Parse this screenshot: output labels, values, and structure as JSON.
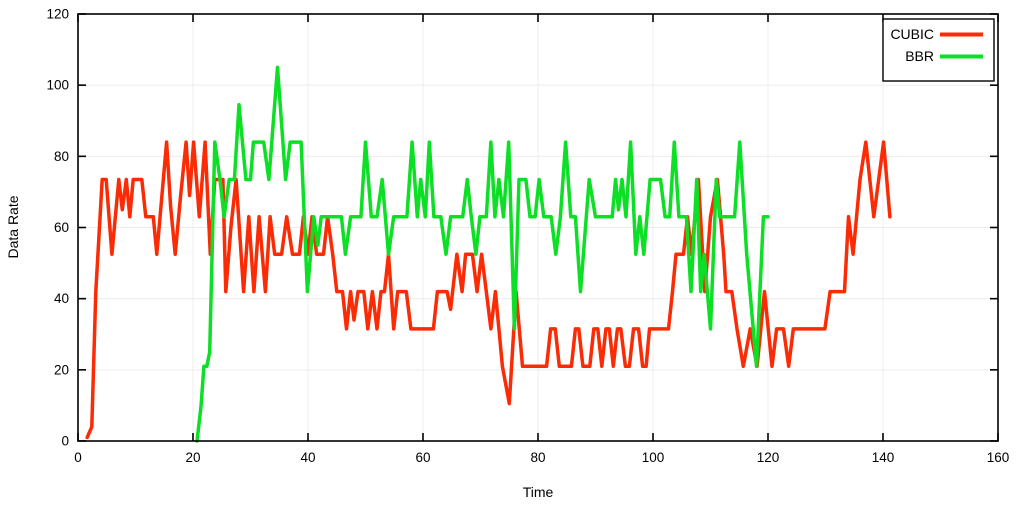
{
  "chart_data": {
    "type": "line",
    "title": "",
    "xlabel": "Time",
    "ylabel": "Data Rate",
    "xlim": [
      0,
      160
    ],
    "ylim": [
      0,
      120
    ],
    "xticks": [
      0,
      20,
      40,
      60,
      80,
      100,
      120,
      140,
      160
    ],
    "yticks": [
      0,
      20,
      40,
      60,
      80,
      100,
      120
    ],
    "grid": true,
    "legend_position": "top-right-inside",
    "colors": {
      "grid": "#ececec",
      "axis": "#000000",
      "background": "#ffffff"
    },
    "series": [
      {
        "name": "CUBIC",
        "color": "#fb2b06",
        "width": 3.5,
        "points": [
          [
            1.6,
            1
          ],
          [
            2.4,
            4
          ],
          [
            3.1,
            42
          ],
          [
            4.2,
            73.5
          ],
          [
            4.9,
            73.5
          ],
          [
            5.9,
            52.5
          ],
          [
            7.1,
            73.5
          ],
          [
            7.7,
            65
          ],
          [
            8.4,
            73.5
          ],
          [
            9.0,
            63
          ],
          [
            9.6,
            73.5
          ],
          [
            11.1,
            73.5
          ],
          [
            11.8,
            63
          ],
          [
            13.1,
            63
          ],
          [
            13.7,
            52.5
          ],
          [
            15.4,
            84
          ],
          [
            16.1,
            66
          ],
          [
            16.9,
            52.5
          ],
          [
            17.8,
            68
          ],
          [
            18.8,
            84
          ],
          [
            19.4,
            69
          ],
          [
            20.1,
            84
          ],
          [
            21.1,
            63
          ],
          [
            22.1,
            84
          ],
          [
            23.0,
            52.5
          ],
          [
            23.8,
            73.5
          ],
          [
            25.2,
            73.5
          ],
          [
            25.7,
            42
          ],
          [
            26.6,
            60
          ],
          [
            27.5,
            73.5
          ],
          [
            28.8,
            42
          ],
          [
            29.7,
            63
          ],
          [
            30.6,
            42
          ],
          [
            31.5,
            63
          ],
          [
            32.6,
            42
          ],
          [
            33.4,
            63
          ],
          [
            34.2,
            52.5
          ],
          [
            35.4,
            52.5
          ],
          [
            36.3,
            63
          ],
          [
            37.3,
            52.5
          ],
          [
            38.5,
            52.5
          ],
          [
            39.2,
            63
          ],
          [
            40.0,
            52.5
          ],
          [
            40.7,
            63
          ],
          [
            41.5,
            52.5
          ],
          [
            42.7,
            52.5
          ],
          [
            43.4,
            63
          ],
          [
            44.3,
            52.5
          ],
          [
            45.0,
            42
          ],
          [
            46.0,
            42
          ],
          [
            46.7,
            31.5
          ],
          [
            47.4,
            42
          ],
          [
            48.0,
            34
          ],
          [
            48.7,
            42
          ],
          [
            49.7,
            42
          ],
          [
            50.4,
            31.5
          ],
          [
            51.2,
            42
          ],
          [
            52.0,
            31.5
          ],
          [
            52.7,
            42
          ],
          [
            53.3,
            42
          ],
          [
            54.0,
            52.5
          ],
          [
            54.9,
            31.5
          ],
          [
            55.6,
            42
          ],
          [
            57.1,
            42
          ],
          [
            57.9,
            31.5
          ],
          [
            61.8,
            31.5
          ],
          [
            62.5,
            42
          ],
          [
            64.2,
            42
          ],
          [
            64.8,
            37
          ],
          [
            65.9,
            52.5
          ],
          [
            66.8,
            42
          ],
          [
            67.4,
            52.5
          ],
          [
            68.6,
            52.5
          ],
          [
            69.4,
            42
          ],
          [
            70.2,
            52.5
          ],
          [
            71.0,
            42
          ],
          [
            71.8,
            31.5
          ],
          [
            72.6,
            42
          ],
          [
            73.8,
            21
          ],
          [
            75.0,
            10.5
          ],
          [
            76.2,
            42
          ],
          [
            77.3,
            21
          ],
          [
            81.5,
            21
          ],
          [
            82.2,
            31.5
          ],
          [
            83.0,
            31.5
          ],
          [
            83.7,
            21
          ],
          [
            85.8,
            21
          ],
          [
            86.5,
            31.5
          ],
          [
            87.1,
            31.5
          ],
          [
            87.8,
            21
          ],
          [
            89.0,
            21
          ],
          [
            89.7,
            31.5
          ],
          [
            90.4,
            31.5
          ],
          [
            91.1,
            21
          ],
          [
            91.8,
            31.5
          ],
          [
            92.4,
            31.5
          ],
          [
            93.1,
            21
          ],
          [
            93.8,
            31.5
          ],
          [
            94.4,
            31.5
          ],
          [
            95.2,
            21
          ],
          [
            95.9,
            21
          ],
          [
            96.6,
            31.5
          ],
          [
            97.5,
            31.5
          ],
          [
            98.2,
            21
          ],
          [
            98.8,
            21
          ],
          [
            99.4,
            31.5
          ],
          [
            102.7,
            31.5
          ],
          [
            103.4,
            42
          ],
          [
            104.0,
            52.5
          ],
          [
            105.3,
            52.5
          ],
          [
            106.0,
            63
          ],
          [
            106.7,
            52.5
          ],
          [
            107.9,
            73.5
          ],
          [
            109.0,
            42
          ],
          [
            110.0,
            63
          ],
          [
            111.2,
            73.5
          ],
          [
            112.3,
            52.5
          ],
          [
            112.7,
            42
          ],
          [
            113.7,
            42
          ],
          [
            114.6,
            31.5
          ],
          [
            115.7,
            21
          ],
          [
            116.9,
            31.5
          ],
          [
            118.1,
            21
          ],
          [
            119.4,
            42
          ],
          [
            120.7,
            21
          ],
          [
            121.5,
            31.5
          ],
          [
            122.7,
            31.5
          ],
          [
            123.6,
            21
          ],
          [
            124.4,
            31.5
          ],
          [
            129.9,
            31.5
          ],
          [
            130.8,
            42
          ],
          [
            133.3,
            42
          ],
          [
            134.0,
            63
          ],
          [
            134.8,
            52.5
          ],
          [
            136.0,
            73.5
          ],
          [
            137.0,
            84
          ],
          [
            138.4,
            63
          ],
          [
            140.1,
            84
          ],
          [
            141.2,
            63
          ]
        ]
      },
      {
        "name": "BBR",
        "color": "#0ddf26",
        "width": 3.5,
        "points": [
          [
            20.7,
            0
          ],
          [
            21.4,
            10
          ],
          [
            21.9,
            21
          ],
          [
            22.4,
            21
          ],
          [
            22.9,
            25
          ],
          [
            23.8,
            84
          ],
          [
            24.7,
            73.5
          ],
          [
            25.4,
            63
          ],
          [
            26.3,
            73.5
          ],
          [
            27.2,
            73.5
          ],
          [
            28.0,
            94.5
          ],
          [
            29.2,
            73.5
          ],
          [
            30.0,
            73.5
          ],
          [
            30.5,
            84
          ],
          [
            32.3,
            84
          ],
          [
            33.2,
            73.5
          ],
          [
            34.7,
            105
          ],
          [
            36.1,
            73.5
          ],
          [
            36.9,
            84
          ],
          [
            38.8,
            84
          ],
          [
            39.9,
            42
          ],
          [
            41.0,
            63
          ],
          [
            41.7,
            55
          ],
          [
            42.3,
            63
          ],
          [
            45.8,
            63
          ],
          [
            46.5,
            52.5
          ],
          [
            47.4,
            63
          ],
          [
            49.2,
            63
          ],
          [
            50.0,
            84
          ],
          [
            51.0,
            63
          ],
          [
            52.0,
            63
          ],
          [
            52.9,
            73.5
          ],
          [
            54.0,
            52.5
          ],
          [
            54.9,
            63
          ],
          [
            57.2,
            63
          ],
          [
            58.1,
            84
          ],
          [
            59.0,
            63
          ],
          [
            59.6,
            73.5
          ],
          [
            60.4,
            63
          ],
          [
            61.1,
            84
          ],
          [
            61.9,
            63
          ],
          [
            63.1,
            63
          ],
          [
            64.0,
            52.5
          ],
          [
            64.8,
            63
          ],
          [
            66.9,
            63
          ],
          [
            67.7,
            73.5
          ],
          [
            68.4,
            63
          ],
          [
            69.2,
            52.5
          ],
          [
            69.9,
            63
          ],
          [
            71.0,
            63
          ],
          [
            71.8,
            84
          ],
          [
            72.5,
            63
          ],
          [
            73.2,
            73.5
          ],
          [
            74.0,
            63
          ],
          [
            74.9,
            84
          ],
          [
            75.9,
            31.5
          ],
          [
            76.7,
            73.5
          ],
          [
            77.9,
            73.5
          ],
          [
            78.6,
            63
          ],
          [
            79.5,
            63
          ],
          [
            80.2,
            73.5
          ],
          [
            81.0,
            63
          ],
          [
            82.3,
            63
          ],
          [
            83.1,
            52.5
          ],
          [
            83.9,
            63
          ],
          [
            84.8,
            84
          ],
          [
            85.7,
            63
          ],
          [
            86.5,
            63
          ],
          [
            87.4,
            42
          ],
          [
            88.9,
            73.5
          ],
          [
            90.0,
            63
          ],
          [
            92.9,
            63
          ],
          [
            93.5,
            73.5
          ],
          [
            94.0,
            65
          ],
          [
            94.6,
            73.5
          ],
          [
            95.3,
            63
          ],
          [
            96.1,
            84
          ],
          [
            97.0,
            52.5
          ],
          [
            97.7,
            63
          ],
          [
            98.4,
            52.5
          ],
          [
            99.5,
            73.5
          ],
          [
            101.3,
            73.5
          ],
          [
            102.1,
            63
          ],
          [
            102.9,
            63
          ],
          [
            103.7,
            84
          ],
          [
            104.5,
            63
          ],
          [
            105.8,
            63
          ],
          [
            106.6,
            42
          ],
          [
            107.6,
            73.5
          ],
          [
            108.3,
            42
          ],
          [
            108.9,
            52.5
          ],
          [
            110.0,
            31.5
          ],
          [
            111.0,
            73.5
          ],
          [
            111.6,
            63
          ],
          [
            114.2,
            63
          ],
          [
            115.1,
            84
          ],
          [
            116.3,
            52.5
          ],
          [
            118.0,
            21
          ],
          [
            119.2,
            63
          ],
          [
            120.0,
            63
          ]
        ]
      }
    ]
  },
  "axes": {
    "x_title": "Time",
    "y_title": "Data Rate",
    "x_tick_labels": [
      "0",
      "20",
      "40",
      "60",
      "80",
      "100",
      "120",
      "140",
      "160"
    ],
    "y_tick_labels": [
      "0",
      "20",
      "40",
      "60",
      "80",
      "100",
      "120"
    ]
  },
  "legend": {
    "entries": [
      {
        "label": "CUBIC",
        "color": "#fb2b06"
      },
      {
        "label": "BBR",
        "color": "#0ddf26"
      }
    ]
  }
}
